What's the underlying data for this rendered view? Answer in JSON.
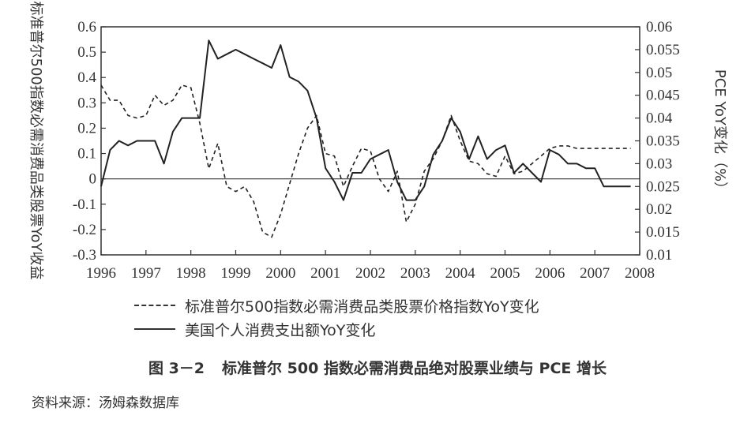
{
  "chart_data": {
    "type": "line",
    "caption_number": "图 3－2",
    "caption_title": "标准普尔 500 指数必需消费品绝对股票业绩与 PCE 增长",
    "source": "资料来源：汤姆森数据库",
    "ylabel_left": "标准普尔500指数必需消费品类股票YoY收益",
    "ylabel_right": "PCE YoY变化（%）",
    "xlim": [
      1996,
      2008
    ],
    "ylim_left": [
      -0.3,
      0.6
    ],
    "ylim_right": [
      0.01,
      0.06
    ],
    "x_ticks": [
      "1996",
      "1997",
      "1998",
      "1999",
      "2000",
      "2001",
      "2002",
      "2003",
      "2004",
      "2005",
      "2006",
      "2007",
      "2008"
    ],
    "y_left_ticks": [
      "0.6",
      "0.5",
      "0.4",
      "0.3",
      "0.2",
      "0.1",
      "0",
      "-0.1",
      "-0.2",
      "-0.3"
    ],
    "y_right_ticks": [
      "0.06",
      "0.055",
      "0.05",
      "0.045",
      "0.04",
      "0.035",
      "0.03",
      "0.025",
      "0.02",
      "0.015",
      "0.01"
    ],
    "grid": false,
    "legend_position": "bottom",
    "series": [
      {
        "name": "标准普尔500指数必需消费品类股票价格指数YoY变化",
        "axis": "left",
        "style": "dashed",
        "x": [
          1996.0,
          1996.2,
          1996.4,
          1996.6,
          1996.8,
          1997.0,
          1997.2,
          1997.4,
          1997.6,
          1997.8,
          1998.0,
          1998.2,
          1998.4,
          1998.6,
          1998.8,
          1999.0,
          1999.2,
          1999.4,
          1999.6,
          1999.8,
          2000.0,
          2000.2,
          2000.4,
          2000.6,
          2000.8,
          2001.0,
          2001.2,
          2001.4,
          2001.6,
          2001.8,
          2002.0,
          2002.2,
          2002.4,
          2002.6,
          2002.8,
          2003.0,
          2003.2,
          2003.4,
          2003.6,
          2003.8,
          2004.0,
          2004.2,
          2004.4,
          2004.6,
          2004.8,
          2005.0,
          2005.2,
          2005.4,
          2005.6,
          2005.8,
          2006.0,
          2006.2,
          2006.4,
          2006.6,
          2006.8,
          2007.0,
          2007.2,
          2007.4,
          2007.6,
          2007.8
        ],
        "y": [
          0.37,
          0.31,
          0.31,
          0.25,
          0.24,
          0.25,
          0.33,
          0.29,
          0.31,
          0.37,
          0.36,
          0.22,
          0.04,
          0.14,
          -0.03,
          -0.05,
          -0.03,
          -0.09,
          -0.21,
          -0.23,
          -0.14,
          -0.02,
          0.1,
          0.2,
          0.25,
          0.1,
          0.09,
          -0.03,
          0.05,
          0.12,
          0.11,
          0.0,
          -0.05,
          0.03,
          -0.17,
          -0.1,
          0.03,
          0.08,
          0.15,
          0.25,
          0.15,
          0.07,
          0.06,
          0.02,
          0.01,
          0.09,
          0.02,
          0.03,
          0.06,
          0.09,
          0.12,
          0.13,
          0.13,
          0.12,
          0.12,
          0.12,
          0.12,
          0.12,
          0.12,
          0.12
        ]
      },
      {
        "name": "美国个人消费支出额YoY变化",
        "axis": "right",
        "style": "solid",
        "x": [
          1996.0,
          1996.2,
          1996.4,
          1996.6,
          1996.8,
          1997.0,
          1997.2,
          1997.4,
          1997.6,
          1997.8,
          1998.0,
          1998.2,
          1998.4,
          1998.6,
          1998.8,
          1999.0,
          1999.2,
          1999.4,
          1999.6,
          1999.8,
          2000.0,
          2000.2,
          2000.4,
          2000.6,
          2000.8,
          2001.0,
          2001.2,
          2001.4,
          2001.6,
          2001.8,
          2002.0,
          2002.2,
          2002.4,
          2002.6,
          2002.8,
          2003.0,
          2003.2,
          2003.4,
          2003.6,
          2003.8,
          2004.0,
          2004.2,
          2004.4,
          2004.6,
          2004.8,
          2005.0,
          2005.2,
          2005.4,
          2005.6,
          2005.8,
          2006.0,
          2006.2,
          2006.4,
          2006.6,
          2006.8,
          2007.0,
          2007.2,
          2007.4,
          2007.6,
          2007.8
        ],
        "y": [
          0.025,
          0.033,
          0.035,
          0.034,
          0.035,
          0.035,
          0.035,
          0.03,
          0.037,
          0.04,
          0.04,
          0.04,
          0.057,
          0.053,
          0.054,
          0.055,
          0.054,
          0.053,
          0.052,
          0.051,
          0.056,
          0.049,
          0.048,
          0.046,
          0.04,
          0.029,
          0.026,
          0.022,
          0.028,
          0.028,
          0.031,
          0.032,
          0.033,
          0.026,
          0.022,
          0.022,
          0.025,
          0.032,
          0.035,
          0.04,
          0.037,
          0.031,
          0.036,
          0.031,
          0.033,
          0.034,
          0.028,
          0.03,
          0.028,
          0.026,
          0.033,
          0.032,
          0.03,
          0.03,
          0.029,
          0.029,
          0.025,
          0.025,
          0.025,
          0.025
        ]
      }
    ]
  }
}
